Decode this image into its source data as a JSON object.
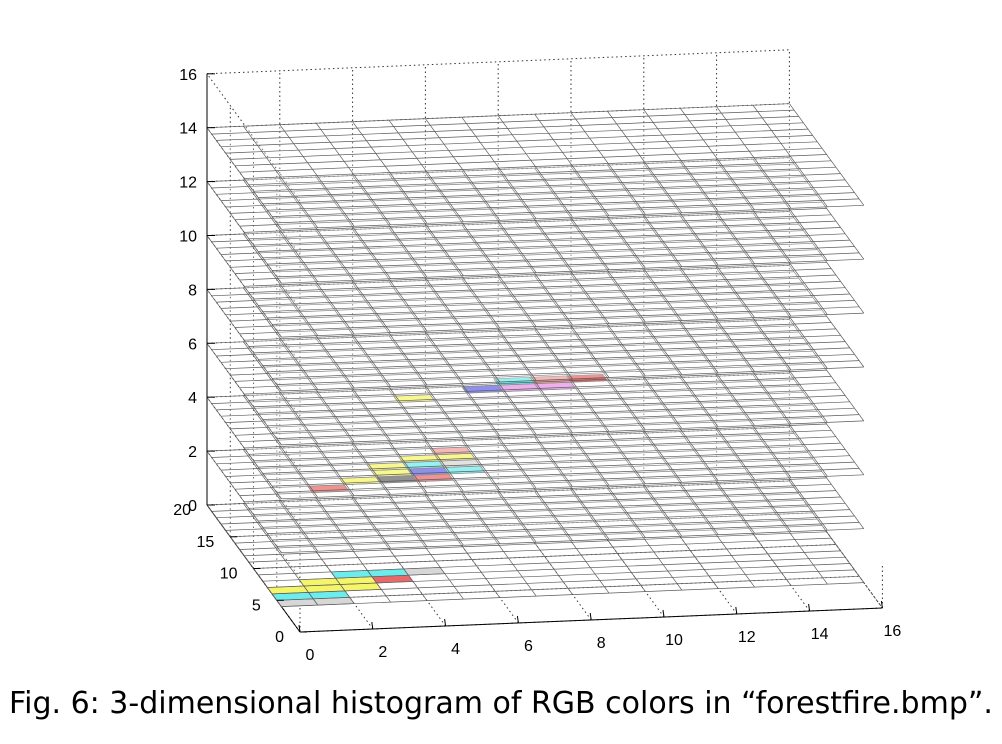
{
  "caption": "Fig. 6: 3-dimensional histogram of RGB colors in “forestfire.bmp”.",
  "chart_data": {
    "type": "heatmap",
    "title": "",
    "xlabel": "",
    "ylabel": "",
    "zlabel": "",
    "xlim": [
      0,
      16
    ],
    "ylim": [
      0,
      20
    ],
    "zlim": [
      0,
      16
    ],
    "x_ticks": [
      "0",
      "2",
      "4",
      "6",
      "8",
      "10",
      "12",
      "14",
      "16"
    ],
    "y_ticks": [
      "0",
      "5",
      "10",
      "15",
      "20"
    ],
    "z_ticks": [
      "0",
      "2",
      "4",
      "6",
      "8",
      "10",
      "12",
      "14",
      "16"
    ],
    "grid": true,
    "layers": [
      0,
      2,
      4,
      6,
      8,
      10,
      12,
      14
    ],
    "grid_cells": {
      "x": 16,
      "y": 16
    },
    "colors": {
      "yellow": "#f2f230",
      "cyan": "#33e6e6",
      "red": "#e03030",
      "blue": "#2a2ae0",
      "magenta": "#e066e0",
      "gray": "#c8c8c8",
      "pink": "#f07878",
      "dark": "#303030"
    },
    "cells": [
      {
        "z": 0,
        "x": 0,
        "y": 4,
        "color": "gray"
      },
      {
        "z": 0,
        "x": 1,
        "y": 4,
        "color": "gray"
      },
      {
        "z": 0,
        "x": 0,
        "y": 5,
        "color": "cyan"
      },
      {
        "z": 0,
        "x": 1,
        "y": 5,
        "color": "cyan"
      },
      {
        "z": 0,
        "x": 0,
        "y": 6,
        "color": "yellow"
      },
      {
        "z": 0,
        "x": 1,
        "y": 6,
        "color": "yellow"
      },
      {
        "z": 0,
        "x": 2,
        "y": 6,
        "color": "yellow"
      },
      {
        "z": 0,
        "x": 1,
        "y": 7,
        "color": "yellow"
      },
      {
        "z": 0,
        "x": 2,
        "y": 7,
        "color": "yellow"
      },
      {
        "z": 0,
        "x": 3,
        "y": 7,
        "color": "red"
      },
      {
        "z": 0,
        "x": 2,
        "y": 8,
        "color": "cyan"
      },
      {
        "z": 0,
        "x": 3,
        "y": 8,
        "color": "cyan"
      },
      {
        "z": 0,
        "x": 4,
        "y": 8,
        "color": "gray"
      },
      {
        "z": 2,
        "x": 2,
        "y": 13,
        "color": "red"
      },
      {
        "z": 2,
        "x": 3,
        "y": 14,
        "color": "yellow"
      },
      {
        "z": 2,
        "x": 4,
        "y": 14,
        "color": "dark"
      },
      {
        "z": 2,
        "x": 5,
        "y": 14,
        "color": "red"
      },
      {
        "z": 2,
        "x": 4,
        "y": 15,
        "color": "yellow"
      },
      {
        "z": 2,
        "x": 5,
        "y": 15,
        "color": "blue"
      },
      {
        "z": 2,
        "x": 6,
        "y": 15,
        "color": "cyan"
      },
      {
        "z": 2,
        "x": 4,
        "y": 16,
        "color": "yellow"
      },
      {
        "z": 2,
        "x": 5,
        "y": 16,
        "color": "cyan"
      },
      {
        "z": 2,
        "x": 6,
        "y": 16,
        "color": "gray"
      },
      {
        "z": 2,
        "x": 5,
        "y": 17,
        "color": "yellow"
      },
      {
        "z": 2,
        "x": 6,
        "y": 17,
        "color": "yellow"
      },
      {
        "z": 2,
        "x": 6,
        "y": 18,
        "color": "pink"
      },
      {
        "z": 4,
        "x": 5,
        "y": 18,
        "color": "yellow"
      },
      {
        "z": 4,
        "x": 7,
        "y": 19,
        "color": "blue"
      },
      {
        "z": 4,
        "x": 8,
        "y": 19,
        "color": "magenta"
      },
      {
        "z": 4,
        "x": 9,
        "y": 19,
        "color": "magenta"
      },
      {
        "z": 4,
        "x": 8,
        "y": 20,
        "color": "cyan"
      },
      {
        "z": 4,
        "x": 9,
        "y": 20,
        "color": "pink"
      },
      {
        "z": 4,
        "x": 10,
        "y": 20,
        "color": "red"
      }
    ]
  }
}
